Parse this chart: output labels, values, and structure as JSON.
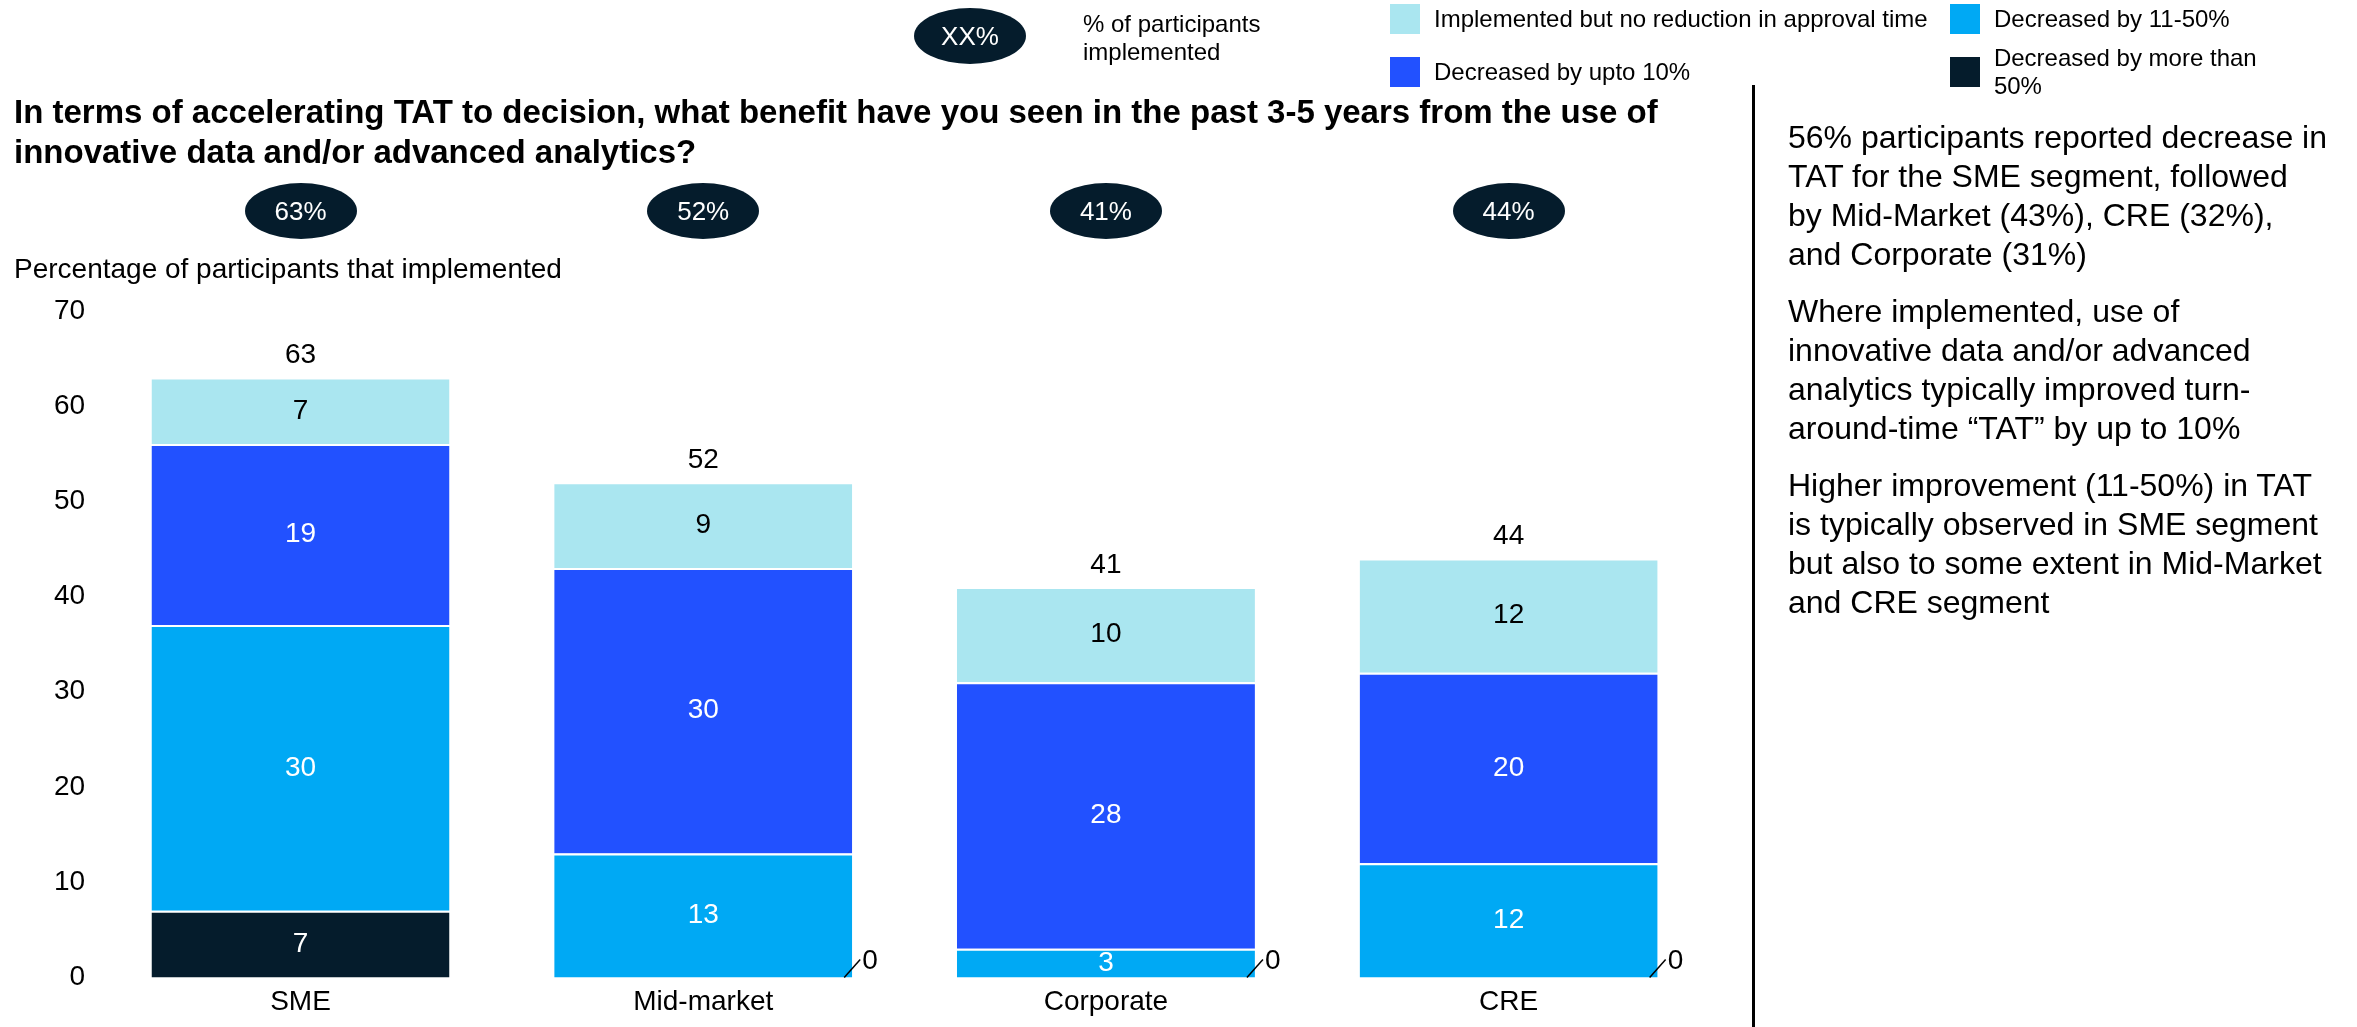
{
  "chart_data": {
    "type": "bar",
    "stacked": true,
    "title": "In terms of accelerating TAT to decision, what benefit have you seen in the past 3-5 years from the use of innovative data and/or advanced analytics?",
    "ylabel": "Percentage of participants that implemented",
    "categories": [
      "SME",
      "Mid-market",
      "Corporate",
      "CRE"
    ],
    "series": [
      {
        "name": "Decreased by more than 50%",
        "color": "#051c2c",
        "values": [
          7,
          0,
          0,
          0
        ],
        "value_labels": [
          "7",
          null,
          null,
          null
        ]
      },
      {
        "name": "Decreased by 11-50%",
        "color": "#00a9f4",
        "values": [
          30,
          13,
          3,
          12
        ],
        "value_labels": [
          "30",
          "13",
          "3",
          "12"
        ]
      },
      {
        "name": "Decreased by upto 10%",
        "color": "#2251ff",
        "values": [
          19,
          30,
          28,
          20
        ],
        "value_labels": [
          "19",
          "30",
          "28",
          "20"
        ]
      },
      {
        "name": "Implemented but no reduction in approval time",
        "color": "#aae6f0",
        "values": [
          7,
          9,
          10,
          12
        ],
        "value_labels": [
          "7",
          "9",
          "10",
          "12"
        ]
      }
    ],
    "totals": [
      "63",
      "52",
      "41",
      "44"
    ],
    "ylim": [
      0,
      70
    ],
    "yticks": [
      0,
      10,
      20,
      30,
      40,
      50,
      60,
      70
    ],
    "grid": false,
    "legend": "top right",
    "annotations": [
      "XX%",
      "% of participants implemented",
      "63%",
      "52%",
      "41%",
      "44%",
      "0",
      "0",
      "0",
      "56% participants reported decrease in TAT for the SME segment, followed by Mid-Market (43%), CRE (32%), and Corporate (31%)",
      "Where implemented, use of innovative data and/or advanced analytics typically improved turn-around-time “TAT” by up to 10%",
      "Higher improvement (11-50%) in TAT is typically observed in SME segment but also to some extent in Mid-Market and CRE segment"
    ]
  }
}
